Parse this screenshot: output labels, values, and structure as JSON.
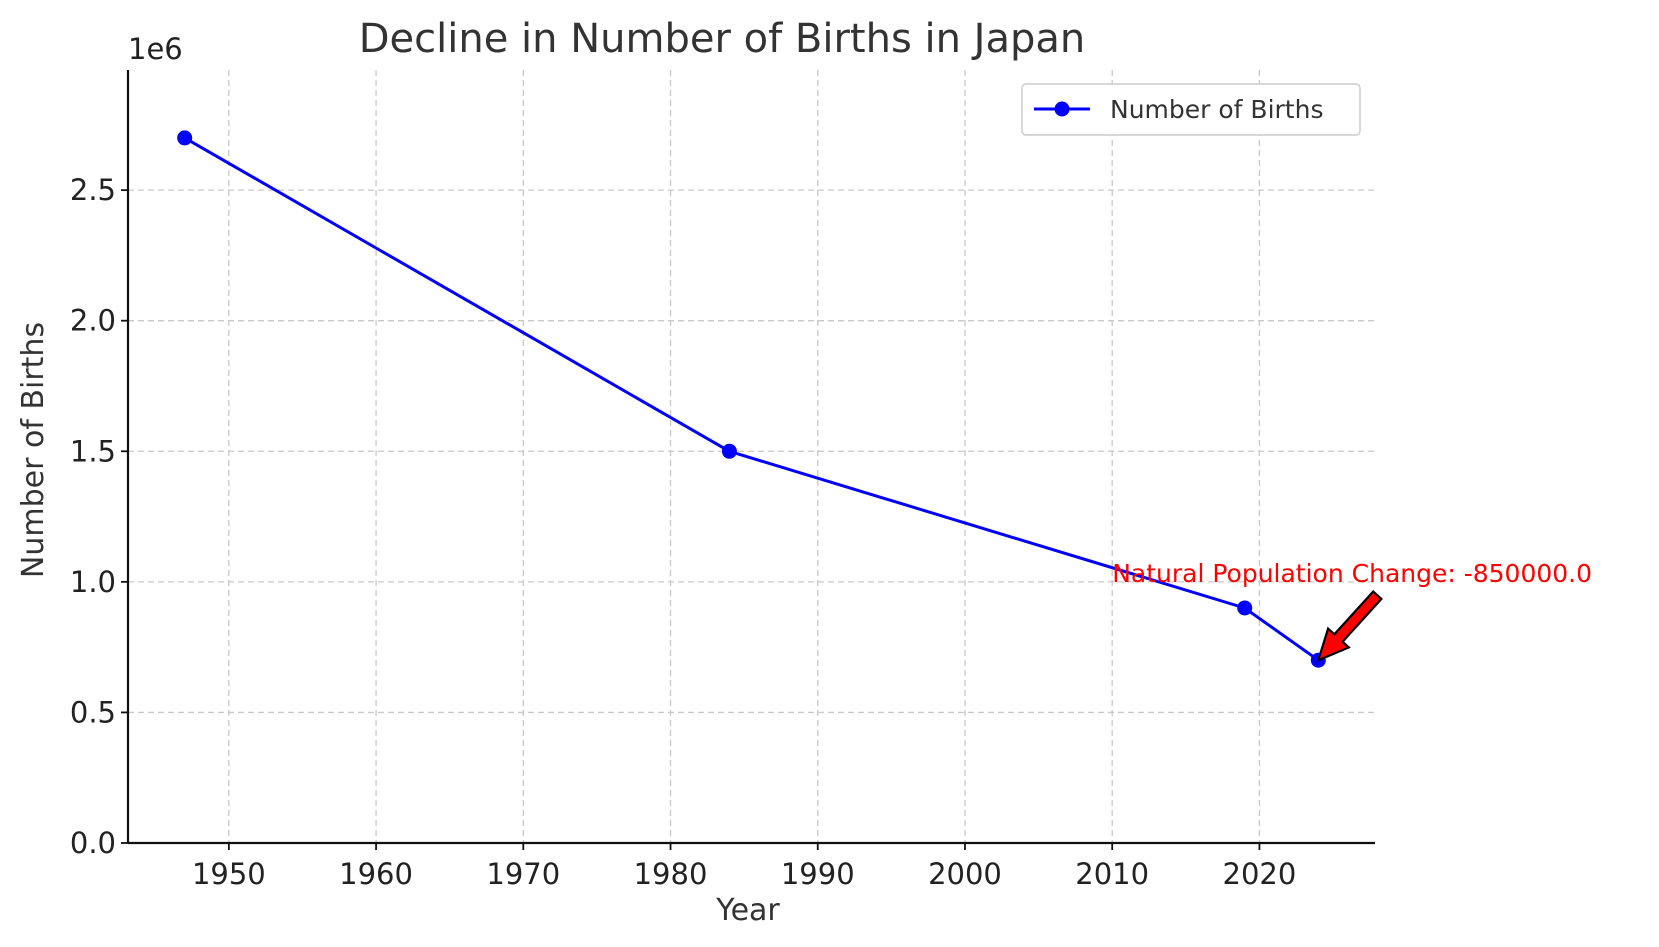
{
  "chart_data": {
    "type": "line",
    "title": "Decline in Number of Births in Japan",
    "xlabel": "Year",
    "ylabel": "Number of Births",
    "y_offset_label": "1e6",
    "x": [
      1947,
      1984,
      2019,
      2024
    ],
    "series": [
      {
        "name": "Number of Births",
        "values": [
          2700000,
          1500000,
          900000,
          700000
        ],
        "color": "#0000ff"
      }
    ],
    "xlim": [
      1943.15,
      2027.85
    ],
    "ylim": [
      0,
      2960000
    ],
    "x_ticks": [
      1950,
      1960,
      1970,
      1980,
      1990,
      2000,
      2010,
      2020
    ],
    "x_tick_labels": [
      "1950",
      "1960",
      "1970",
      "1980",
      "1990",
      "2000",
      "2010",
      "2020"
    ],
    "y_ticks": [
      0,
      500000,
      1000000,
      1500000,
      2000000,
      2500000
    ],
    "y_tick_labels": [
      "0.0",
      "0.5",
      "1.0",
      "1.5",
      "2.0",
      "2.5"
    ],
    "grid": true,
    "legend_position": "top-right",
    "annotation": {
      "text": "Natural Population Change: -850000.0",
      "target_x": 2024,
      "target_y": 700000,
      "text_x": 2010,
      "text_y": 1000000,
      "color": "#ff0000"
    }
  }
}
